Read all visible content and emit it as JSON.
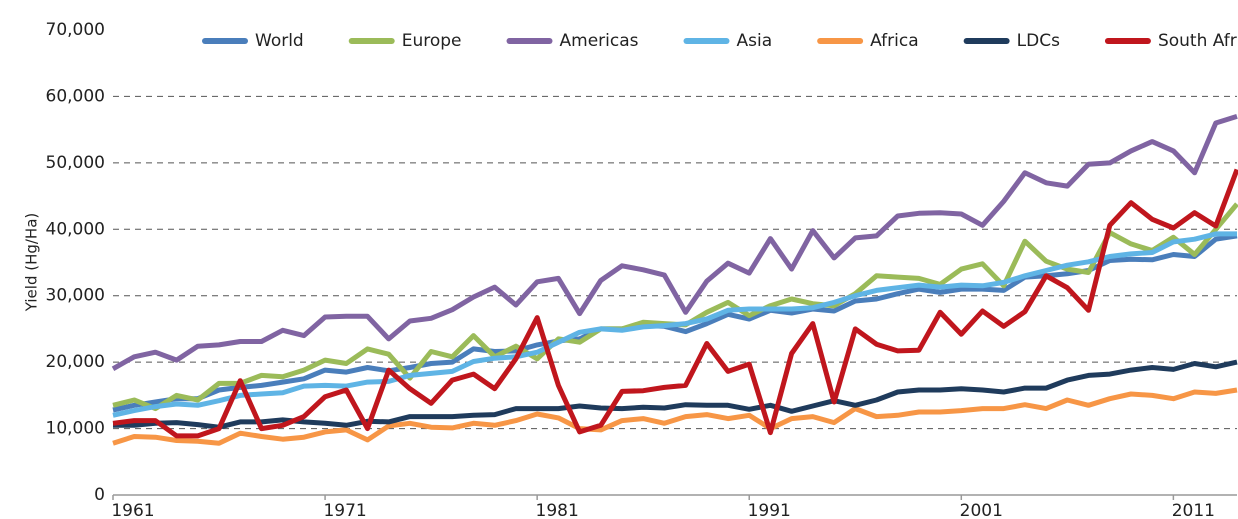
{
  "chart_data": {
    "type": "line",
    "y_label": "Yield (Hg/Ha)",
    "x": [
      1961,
      1962,
      1963,
      1964,
      1965,
      1966,
      1967,
      1968,
      1969,
      1970,
      1971,
      1972,
      1973,
      1974,
      1975,
      1976,
      1977,
      1978,
      1979,
      1980,
      1981,
      1982,
      1983,
      1984,
      1985,
      1986,
      1987,
      1988,
      1989,
      1990,
      1991,
      1992,
      1993,
      1994,
      1995,
      1996,
      1997,
      1998,
      1999,
      2000,
      2001,
      2002,
      2003,
      2004,
      2005,
      2006,
      2007,
      2008,
      2009,
      2010,
      2011,
      2012,
      2013,
      2014
    ],
    "xlim": [
      1961,
      2014
    ],
    "xticks": [
      1961,
      1971,
      1981,
      1991,
      2001,
      2011
    ],
    "ylim": [
      0,
      70000
    ],
    "yticks": [
      0,
      {
        "value": 10000,
        "label": "10,000"
      },
      {
        "value": 20000,
        "label": "20,000"
      },
      {
        "value": 30000,
        "label": "30,000"
      },
      {
        "value": 40000,
        "label": "40,000"
      },
      {
        "value": 50000,
        "label": "50,000"
      },
      {
        "value": 60000,
        "label": "60,000"
      },
      {
        "value": 70000,
        "label": "70,000"
      }
    ],
    "grid": true,
    "legend": "top",
    "series": [
      {
        "name": "World",
        "color": "#4a7ebb",
        "values": [
          12800,
          13500,
          14000,
          14500,
          14500,
          15800,
          16200,
          16500,
          17000,
          17500,
          18800,
          18500,
          19200,
          18700,
          19200,
          19800,
          20000,
          22000,
          21600,
          21700,
          22600,
          23200,
          23500,
          25000,
          25000,
          25500,
          25400,
          24600,
          25800,
          27200,
          26500,
          27800,
          27400,
          28000,
          27700,
          29200,
          29500,
          30300,
          31000,
          30500,
          31000,
          31000,
          30800,
          32800,
          33000,
          33300,
          33800,
          35300,
          35500,
          35400,
          36200,
          35900,
          38500,
          39000
        ]
      },
      {
        "name": "Europe",
        "color": "#9bbb59",
        "values": [
          13500,
          14300,
          13000,
          15000,
          14300,
          16800,
          16800,
          18000,
          17800,
          18800,
          20300,
          19800,
          22000,
          21200,
          17600,
          21600,
          20800,
          24000,
          20800,
          22400,
          20500,
          23500,
          23000,
          25000,
          25000,
          26000,
          25800,
          25600,
          27500,
          29000,
          27000,
          28500,
          29500,
          28800,
          28500,
          30300,
          33000,
          32800,
          32600,
          31700,
          34000,
          34800,
          31500,
          38200,
          35200,
          34000,
          33500,
          39500,
          37800,
          36800,
          38800,
          36200,
          40000,
          43800
        ]
      },
      {
        "name": "Americas",
        "color": "#8064a2",
        "values": [
          19000,
          20800,
          21500,
          20300,
          22400,
          22600,
          23100,
          23100,
          24800,
          24000,
          26800,
          26900,
          26900,
          23500,
          26200,
          26600,
          27900,
          29800,
          31300,
          28600,
          32100,
          32600,
          27300,
          32300,
          34500,
          33900,
          33100,
          27500,
          32200,
          34900,
          33400,
          38600,
          34000,
          39800,
          35700,
          38700,
          39000,
          42000,
          42400,
          42500,
          42300,
          40600,
          44200,
          48500,
          47000,
          46500,
          49800,
          50000,
          51800,
          53200,
          51800,
          48500,
          56000,
          57000
        ]
      },
      {
        "name": "Asia",
        "color": "#5fb4e5",
        "values": [
          12000,
          12700,
          13300,
          13700,
          13500,
          14200,
          15000,
          15200,
          15400,
          16400,
          16500,
          16400,
          17000,
          17100,
          18000,
          18300,
          18600,
          20100,
          20600,
          20800,
          21500,
          23000,
          24500,
          25000,
          24800,
          25300,
          25500,
          25800,
          26500,
          27800,
          28000,
          28000,
          28000,
          28200,
          29000,
          30000,
          30800,
          31200,
          31600,
          31300,
          31600,
          31500,
          32000,
          33000,
          33800,
          34600,
          35100,
          35900,
          36300,
          36500,
          38100,
          38500,
          39300,
          39300
        ]
      },
      {
        "name": "Africa",
        "color": "#f79646",
        "values": [
          7800,
          8800,
          8700,
          8200,
          8100,
          7800,
          9300,
          8800,
          8400,
          8700,
          9500,
          9800,
          8300,
          10400,
          10800,
          10200,
          10100,
          10800,
          10500,
          11200,
          12200,
          11600,
          10000,
          9800,
          11200,
          11500,
          10800,
          11800,
          12100,
          11500,
          12000,
          10000,
          11500,
          11800,
          10900,
          13000,
          11800,
          12000,
          12500,
          12500,
          12700,
          13000,
          13000,
          13600,
          13000,
          14300,
          13500,
          14500,
          15200,
          15000,
          14500,
          15500,
          15300,
          15800
        ]
      },
      {
        "name": "LDCs",
        "color": "#1f3b5c",
        "values": [
          10500,
          10500,
          10800,
          10900,
          10600,
          10200,
          11000,
          11000,
          11300,
          11000,
          10800,
          10500,
          11100,
          11000,
          11800,
          11800,
          11800,
          12000,
          12100,
          13000,
          13000,
          13000,
          13400,
          13100,
          13000,
          13200,
          13100,
          13600,
          13500,
          13500,
          12900,
          13500,
          12600,
          13400,
          14200,
          13500,
          14300,
          15500,
          15800,
          15800,
          16000,
          15800,
          15500,
          16100,
          16100,
          17300,
          18000,
          18200,
          18800,
          19200,
          18900,
          19800,
          19300,
          20000
        ]
      },
      {
        "name": "South Africa",
        "color": "#c0161d",
        "values": [
          10800,
          11200,
          11200,
          8900,
          8900,
          10000,
          17200,
          10000,
          10500,
          11800,
          14800,
          15800,
          10000,
          18800,
          16000,
          13800,
          17300,
          18200,
          16000,
          20500,
          26700,
          16500,
          9500,
          10500,
          15600,
          15700,
          16200,
          16500,
          22800,
          18600,
          19700,
          9400,
          21300,
          25800,
          14000,
          25000,
          22700,
          21700,
          21800,
          27500,
          24200,
          27700,
          25400,
          27600,
          33000,
          31200,
          27800,
          40600,
          44000,
          41500,
          40200,
          42500,
          40500,
          49000
        ]
      }
    ]
  }
}
